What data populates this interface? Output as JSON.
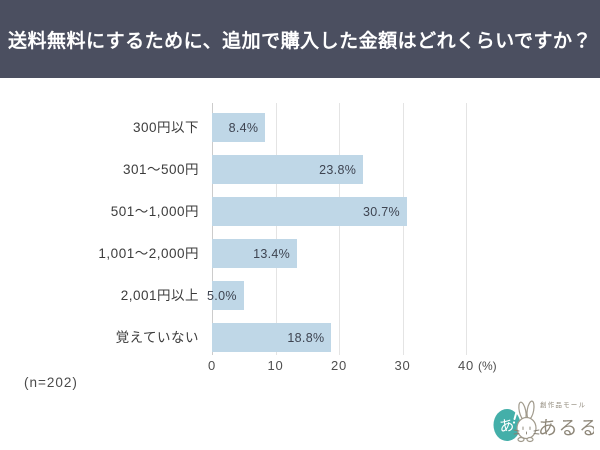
{
  "header": {
    "title": "送料無料にするために、追加で購入した金額はどれくらいですか？"
  },
  "chart_data": {
    "type": "bar",
    "orientation": "horizontal",
    "title": "送料無料にするために、追加で購入した金額はどれくらいですか？",
    "categories": [
      "300円以下",
      "301～500円",
      "501～1,000円",
      "1,001～2,000円",
      "2,001円以上",
      "覚えていない"
    ],
    "values": [
      8.4,
      23.8,
      30.7,
      13.4,
      5.0,
      18.8
    ],
    "value_labels": [
      "8.4%",
      "23.8%",
      "30.7%",
      "13.4%",
      "5.0%",
      "18.8%"
    ],
    "xlim": [
      0,
      40
    ],
    "x_ticks": [
      0,
      10,
      20,
      30,
      40
    ],
    "x_unit": "(%)",
    "grid": true,
    "legend": "none",
    "bar_color": "#bfd7e7",
    "header_color": "#4b4f60"
  },
  "footer": {
    "sample_size": "(n=202)"
  },
  "logo": {
    "brand_small": "創作品モール",
    "brand_large": "あるる",
    "mark": "あ",
    "accent_color": "#44afa9",
    "text_color": "#8f887a"
  }
}
